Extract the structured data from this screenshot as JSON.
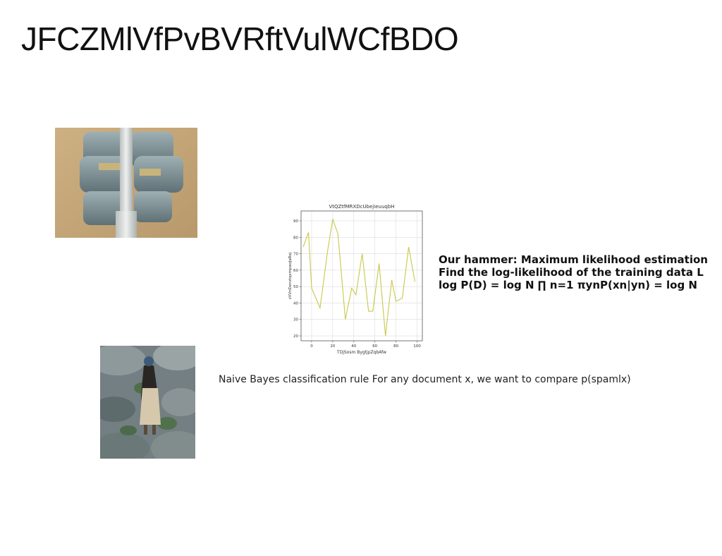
{
  "slide": {
    "title": "JFCZMlVfPvBVRftVulWCfBDO",
    "lines": [
      "Our hammer: Maximum likelihood estimation",
      "Find the log-likelihood of the training data L",
      "log P(D) = log N ∏ n=1 πynP(xn|yn) = log N"
    ],
    "caption": "Naive Bayes classification rule For any document x, we want to compare p(spamlx)"
  },
  "chart_data": {
    "type": "line",
    "title": "VtQZtfMRXDcUbejieuuqbH",
    "xlabel": "TDjSosm BygtjpZqbAfw",
    "ylabel": "zVVnDenxtqsmpwzJaRoj",
    "xlim": [
      -10,
      105
    ],
    "ylim": [
      17,
      96
    ],
    "xticks": [
      0,
      20,
      40,
      60,
      80,
      100
    ],
    "yticks": [
      20,
      30,
      40,
      50,
      60,
      70,
      80,
      90
    ],
    "grid": true,
    "color": "#c8c84a",
    "series": [
      {
        "x": [
          -8,
          -3,
          0,
          8,
          15,
          20,
          25,
          32,
          38,
          42,
          48,
          54,
          58,
          64,
          70,
          76,
          80,
          86,
          92,
          98
        ],
        "y": [
          74,
          83,
          49,
          37,
          71,
          91,
          82,
          30,
          49,
          45,
          70,
          35,
          35,
          64,
          20,
          54,
          41,
          43,
          74,
          53
        ]
      }
    ]
  }
}
